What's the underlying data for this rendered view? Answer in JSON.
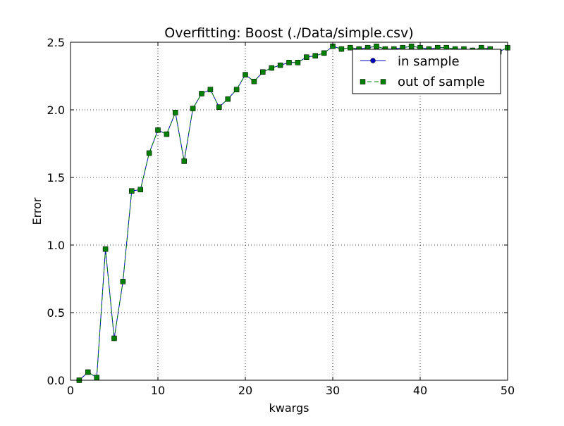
{
  "chart_data": {
    "type": "line",
    "title": "Overfitting: Boost (./Data/simple.csv)",
    "xlabel": "kwargs",
    "ylabel": "Error",
    "xlim": [
      0,
      50
    ],
    "ylim": [
      0.0,
      2.5
    ],
    "xticks": [
      0,
      10,
      20,
      30,
      40,
      50
    ],
    "xtick_labels": [
      "0",
      "10",
      "20",
      "30",
      "40",
      "50"
    ],
    "yticks": [
      0.0,
      0.5,
      1.0,
      1.5,
      2.0,
      2.5
    ],
    "ytick_labels": [
      "0.0",
      "0.5",
      "1.0",
      "1.5",
      "2.0",
      "2.5"
    ],
    "grid": true,
    "legend_position": "top-right",
    "x": [
      1,
      2,
      3,
      4,
      5,
      6,
      7,
      8,
      9,
      10,
      11,
      12,
      13,
      14,
      15,
      16,
      17,
      18,
      19,
      20,
      21,
      22,
      23,
      24,
      25,
      26,
      27,
      28,
      29,
      30,
      31,
      32,
      33,
      34,
      35,
      36,
      37,
      38,
      39,
      40,
      41,
      42,
      43,
      44,
      45,
      46,
      47,
      48,
      49,
      50
    ],
    "series": [
      {
        "name": "in sample",
        "color": "#0000bf",
        "marker": "circle",
        "linestyle": "solid",
        "values": [
          0.0,
          0.06,
          0.02,
          0.97,
          0.31,
          0.73,
          1.4,
          1.41,
          1.68,
          1.85,
          1.82,
          1.98,
          1.62,
          2.01,
          2.12,
          2.15,
          2.02,
          2.08,
          2.15,
          2.26,
          2.21,
          2.28,
          2.31,
          2.33,
          2.35,
          2.35,
          2.39,
          2.4,
          2.42,
          2.47,
          2.45,
          2.46,
          2.45,
          2.46,
          2.47,
          2.45,
          2.45,
          2.46,
          2.47,
          2.46,
          2.45,
          2.46,
          2.46,
          2.45,
          2.45,
          2.44,
          2.46,
          2.45,
          2.43,
          2.46
        ]
      },
      {
        "name": "out of sample",
        "color": "#008000",
        "marker": "square",
        "linestyle": "dashed",
        "values": [
          0.0,
          0.06,
          0.02,
          0.97,
          0.31,
          0.73,
          1.4,
          1.41,
          1.68,
          1.85,
          1.82,
          1.98,
          1.62,
          2.01,
          2.12,
          2.15,
          2.02,
          2.08,
          2.15,
          2.26,
          2.21,
          2.28,
          2.31,
          2.33,
          2.35,
          2.35,
          2.39,
          2.4,
          2.42,
          2.47,
          2.45,
          2.46,
          2.45,
          2.46,
          2.47,
          2.45,
          2.45,
          2.46,
          2.47,
          2.46,
          2.45,
          2.46,
          2.46,
          2.45,
          2.45,
          2.44,
          2.46,
          2.45,
          2.43,
          2.46
        ]
      }
    ]
  }
}
